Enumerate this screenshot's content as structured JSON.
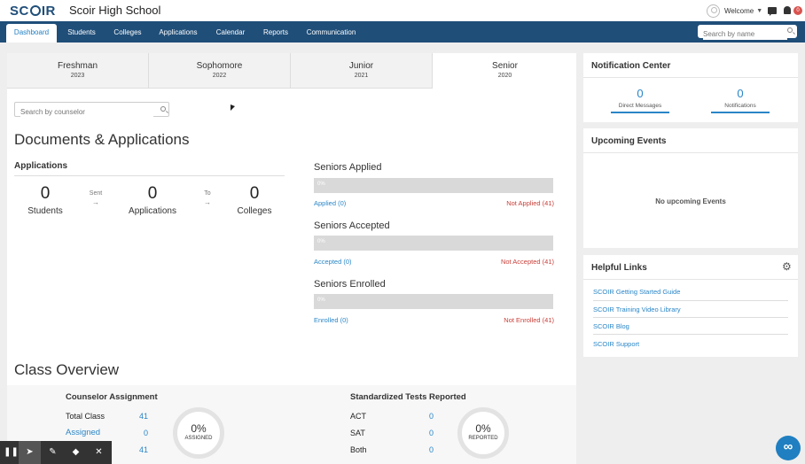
{
  "header": {
    "logo": "SCOIR",
    "school_name": "Scoir High School",
    "welcome": "Welcome",
    "notification_count": "0"
  },
  "nav": {
    "tabs": [
      {
        "label": "Dashboard",
        "active": true
      },
      {
        "label": "Students"
      },
      {
        "label": "Colleges"
      },
      {
        "label": "Applications"
      },
      {
        "label": "Calendar"
      },
      {
        "label": "Reports"
      },
      {
        "label": "Communication"
      }
    ],
    "search_placeholder": "Search by name"
  },
  "years": [
    {
      "name": "Freshman",
      "year": "2023"
    },
    {
      "name": "Sophomore",
      "year": "2022"
    },
    {
      "name": "Junior",
      "year": "2021"
    },
    {
      "name": "Senior",
      "year": "2020",
      "active": true
    }
  ],
  "counselor_search_placeholder": "Search by counselor",
  "documents": {
    "title": "Documents & Applications",
    "applications_heading": "Applications",
    "students_count": "0",
    "students_label": "Students",
    "sent_label": "Sent",
    "applications_count": "0",
    "applications_label": "Applications",
    "to_label": "To",
    "colleges_count": "0",
    "colleges_label": "Colleges",
    "arrow": "→"
  },
  "seniors": {
    "applied": {
      "title": "Seniors Applied",
      "pct": "0%",
      "fill": 0,
      "yes": "Applied (0)",
      "no": "Not Applied (41)"
    },
    "accepted": {
      "title": "Seniors Accepted",
      "pct": "0%",
      "fill": 0,
      "yes": "Accepted (0)",
      "no": "Not Accepted (41)"
    },
    "enrolled": {
      "title": "Seniors Enrolled",
      "pct": "0%",
      "fill": 0,
      "yes": "Enrolled (0)",
      "no": "Not Enrolled (41)"
    }
  },
  "class_overview": {
    "title": "Class Overview",
    "counselor": {
      "heading": "Counselor Assignment",
      "total_label": "Total Class",
      "total_value": "41",
      "assigned_label": "Assigned",
      "assigned_value": "0",
      "third_value": "41",
      "pct": "0%",
      "pct_label": "ASSIGNED"
    },
    "tests": {
      "heading": "Standardized Tests Reported",
      "rows": [
        {
          "label": "ACT",
          "value": "0"
        },
        {
          "label": "SAT",
          "value": "0"
        },
        {
          "label": "Both",
          "value": "0"
        }
      ],
      "pct": "0%",
      "pct_label": "REPORTED"
    }
  },
  "notification_center": {
    "title": "Notification Center",
    "direct_messages_count": "0",
    "direct_messages_label": "Direct Messages",
    "notifications_count": "0",
    "notifications_label": "Notifications"
  },
  "upcoming_events": {
    "title": "Upcoming Events",
    "empty_text": "No upcoming Events"
  },
  "helpful_links": {
    "title": "Helpful Links",
    "links": [
      "SCOIR Getting Started Guide",
      "SCOIR Training Video Library",
      "SCOIR Blog",
      "SCOIR Support"
    ]
  },
  "colors": {
    "brand": "#1f4e79",
    "link": "#2a86c8",
    "danger": "#c9403a"
  }
}
